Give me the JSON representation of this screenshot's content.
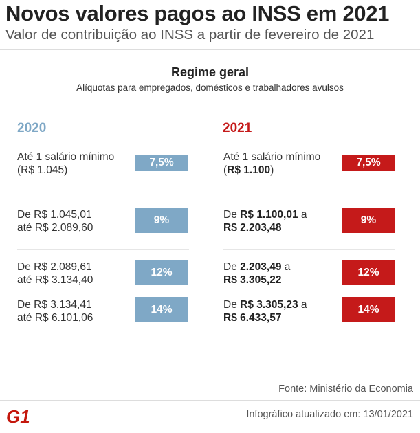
{
  "title": "Novos valores pagos ao INSS em 2021",
  "subtitle": "Valor de contribuição ao INSS a partir de fevereiro de 2021",
  "section": {
    "title": "Regime geral",
    "subtitle": "Alíquotas para empregados, domésticos e trabalhadores avulsos"
  },
  "colors": {
    "blue": "#7fa8c6",
    "red": "#c51a1a"
  },
  "col2020": {
    "year": "2020",
    "rows": [
      {
        "line1": "Até 1 salário mínimo",
        "line2": "(R$ 1.045)",
        "rate": "7,5%"
      },
      {
        "line1": "De R$ 1.045,01",
        "line2": "até R$ 2.089,60",
        "rate": "9%"
      },
      {
        "line1": "De R$ 2.089,61",
        "line2": "até R$ 3.134,40",
        "rate": "12%"
      },
      {
        "line1": "De R$ 3.134,41",
        "line2": "até R$ 6.101,06",
        "rate": "14%"
      }
    ]
  },
  "col2021": {
    "year": "2021",
    "rows": [
      {
        "line1_a": "Até 1 salário mínimo",
        "line2_a": "(",
        "line2_b": "R$ 1.100",
        "line2_c": ")",
        "rate": "7,5%"
      },
      {
        "line1_a": "De ",
        "line1_b": "R$ 1.100,01",
        "line1_c": " a",
        "line2_b": "R$ 2.203,48",
        "rate": "9%"
      },
      {
        "line1_a": "De ",
        "line1_b": "2.203,49",
        "line1_c": " a",
        "line2_b": "R$ 3.305,22",
        "rate": "12%"
      },
      {
        "line1_a": "De ",
        "line1_b": "R$ 3.305,23",
        "line1_c": " a",
        "line2_b": "R$ 6.433,57",
        "rate": "14%"
      }
    ]
  },
  "footer": {
    "source": "Fonte: Ministério da Economia",
    "updated": "Infográfico atualizado em: 13/01/2021",
    "logo_text": "G1"
  }
}
